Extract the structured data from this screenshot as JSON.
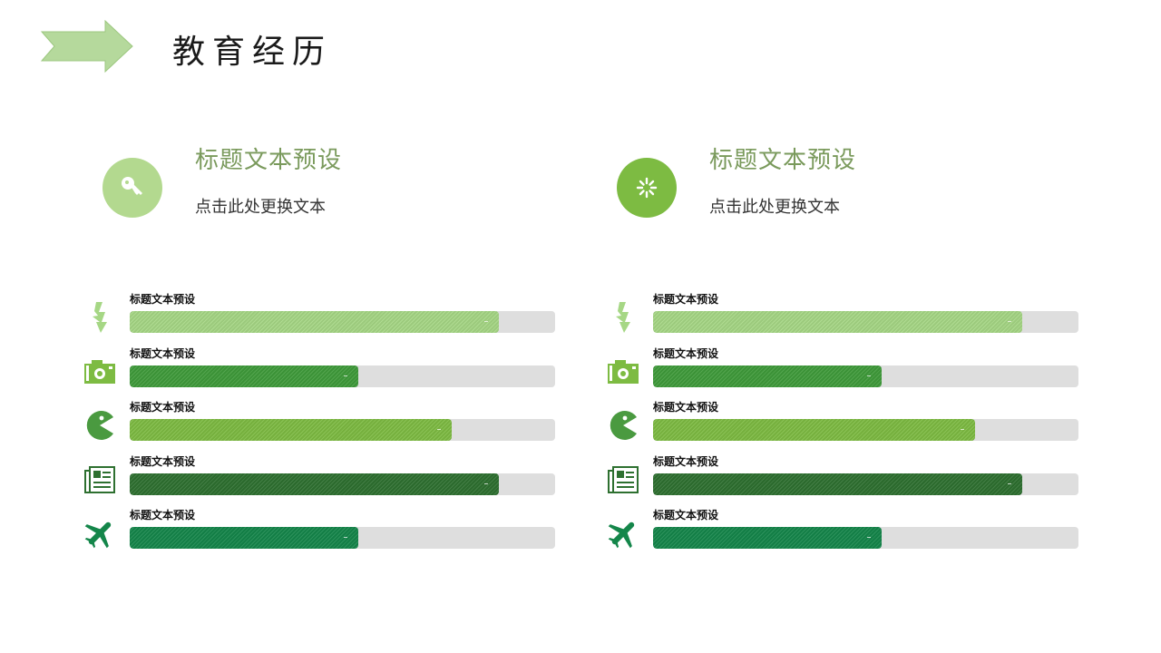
{
  "header": {
    "title": "教育经历",
    "arrow_color": "#b5d99c"
  },
  "intro": [
    {
      "title": "标题文本预设",
      "subtitle": "点击此处更换文本",
      "icon": "key-icon",
      "circle_color": "#b3d98f"
    },
    {
      "title": "标题文本预设",
      "subtitle": "点击此处更换文本",
      "icon": "loading-spinner-icon",
      "circle_color": "#7dbb42"
    }
  ],
  "skill_columns": [
    {
      "items": [
        {
          "label": "标题文本预设",
          "icon": "lightning-icon",
          "percent": 86.8,
          "color": "#a6d785",
          "icon_color": "#a6d785"
        },
        {
          "label": "标题文本预设",
          "icon": "camera-icon",
          "percent": 53.7,
          "color": "#3f9b3a",
          "icon_color": "#7dbb42"
        },
        {
          "label": "标题文本预设",
          "icon": "pacman-icon",
          "percent": 75.7,
          "color": "#7dbb42",
          "icon_color": "#4a9a40"
        },
        {
          "label": "标题文本预设",
          "icon": "newspaper-icon",
          "percent": 86.8,
          "color": "#2e7030",
          "icon_color": "#2e7030"
        },
        {
          "label": "标题文本预设",
          "icon": "airplane-icon",
          "percent": 53.7,
          "color": "#14864a",
          "icon_color": "#14864a"
        }
      ]
    },
    {
      "items": [
        {
          "label": "标题文本预设",
          "icon": "lightning-icon",
          "percent": 86.8,
          "color": "#a6d785",
          "icon_color": "#a6d785"
        },
        {
          "label": "标题文本预设",
          "icon": "camera-icon",
          "percent": 53.7,
          "color": "#3f9b3a",
          "icon_color": "#7dbb42"
        },
        {
          "label": "标题文本预设",
          "icon": "pacman-icon",
          "percent": 75.7,
          "color": "#7dbb42",
          "icon_color": "#4a9a40"
        },
        {
          "label": "标题文本预设",
          "icon": "newspaper-icon",
          "percent": 86.8,
          "color": "#2e7030",
          "icon_color": "#2e7030"
        },
        {
          "label": "标题文本预设",
          "icon": "airplane-icon",
          "percent": 53.7,
          "color": "#14864a",
          "icon_color": "#14864a"
        }
      ]
    }
  ],
  "track_color": "#dedede"
}
